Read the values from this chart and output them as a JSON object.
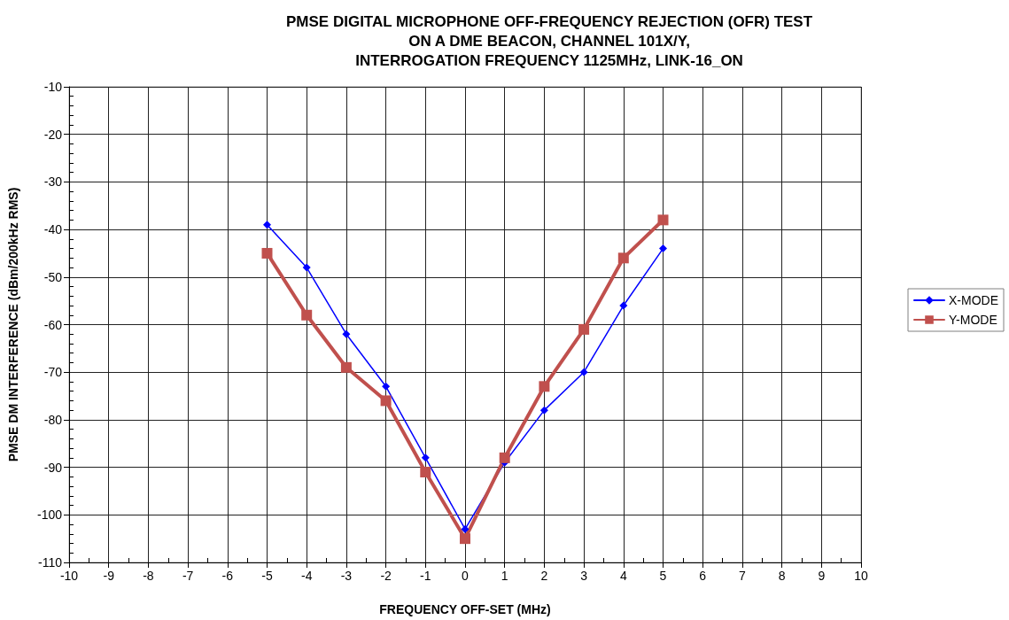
{
  "chart_data": {
    "type": "line",
    "title": "PMSE DIGITAL MICROPHONE OFF-FREQUENCY REJECTION (OFR) TEST\nON A DME BEACON, CHANNEL 101X/Y,\nINTERROGATION FREQUENCY 1125MHz, LINK-16_ON",
    "xlabel": "FREQUENCY OFF-SET (MHz)",
    "ylabel": "PMSE DM INTERFERENCE (dBm/200kHz RMS)",
    "x": [
      -5,
      -4,
      -3,
      -2,
      -1,
      0,
      1,
      2,
      3,
      4,
      5
    ],
    "series": [
      {
        "name": "X-MODE",
        "color": "#0000ff",
        "marker": "diamond",
        "values": [
          -39,
          -48,
          -62,
          -73,
          -88,
          -103,
          -89,
          -78,
          -70,
          -56,
          -44
        ]
      },
      {
        "name": "Y-MODE",
        "color": "#c0504d",
        "marker": "square",
        "values": [
          -45,
          -58,
          -69,
          -76,
          -91,
          -105,
          -88,
          -73,
          -61,
          -46,
          -38
        ]
      }
    ],
    "xlim": [
      -10,
      10
    ],
    "xticks": [
      -10,
      {
        "value": -9.5,
        "label": null
      },
      -9,
      {
        "value": -8.5,
        "label": null
      },
      -8,
      {
        "value": -7.5,
        "label": null
      },
      -7,
      {
        "value": -6.5,
        "label": null
      },
      -6,
      {
        "value": -5.5,
        "label": null
      },
      -5,
      {
        "value": -4.5,
        "label": null
      },
      -4,
      {
        "value": -3.5,
        "label": null
      },
      -3,
      {
        "value": -2.5,
        "label": null
      },
      -2,
      {
        "value": -1.5,
        "label": null
      },
      -1,
      {
        "value": -0.5,
        "label": null
      },
      0,
      {
        "value": 0.5,
        "label": null
      },
      1,
      {
        "value": 1.5,
        "label": null
      },
      2,
      {
        "value": 2.5,
        "label": null
      },
      3,
      {
        "value": 3.5,
        "label": null
      },
      4,
      {
        "value": 4.5,
        "label": null
      },
      5,
      {
        "value": 5.5,
        "label": null
      },
      6,
      {
        "value": 6.5,
        "label": null
      },
      7,
      {
        "value": 7.5,
        "label": null
      },
      8,
      {
        "value": 8.5,
        "label": null
      },
      9,
      {
        "value": 9.5,
        "label": null
      },
      10
    ],
    "ylim": [
      -110,
      -10
    ],
    "yticks": [
      -110,
      {
        "value": -108,
        "label": null
      },
      {
        "value": -106,
        "label": null
      },
      {
        "value": -104,
        "label": null
      },
      {
        "value": -102,
        "label": null
      },
      -100,
      {
        "value": -98,
        "label": null
      },
      {
        "value": -96,
        "label": null
      },
      {
        "value": -94,
        "label": null
      },
      {
        "value": -92,
        "label": null
      },
      -90,
      {
        "value": -88,
        "label": null
      },
      {
        "value": -86,
        "label": null
      },
      {
        "value": -84,
        "label": null
      },
      {
        "value": -82,
        "label": null
      },
      -80,
      {
        "value": -78,
        "label": null
      },
      {
        "value": -76,
        "label": null
      },
      {
        "value": -74,
        "label": null
      },
      {
        "value": -72,
        "label": null
      },
      -70,
      {
        "value": -68,
        "label": null
      },
      {
        "value": -66,
        "label": null
      },
      {
        "value": -64,
        "label": null
      },
      {
        "value": -62,
        "label": null
      },
      -60,
      {
        "value": -58,
        "label": null
      },
      {
        "value": -56,
        "label": null
      },
      {
        "value": -54,
        "label": null
      },
      {
        "value": -52,
        "label": null
      },
      -50,
      {
        "value": -48,
        "label": null
      },
      {
        "value": -46,
        "label": null
      },
      {
        "value": -44,
        "label": null
      },
      {
        "value": -42,
        "label": null
      },
      -40,
      {
        "value": -38,
        "label": null
      },
      {
        "value": -36,
        "label": null
      },
      {
        "value": -34,
        "label": null
      },
      {
        "value": -32,
        "label": null
      },
      -30,
      {
        "value": -28,
        "label": null
      },
      {
        "value": -26,
        "label": null
      },
      {
        "value": -24,
        "label": null
      },
      {
        "value": -22,
        "label": null
      },
      -20,
      {
        "value": -18,
        "label": null
      },
      {
        "value": -16,
        "label": null
      },
      {
        "value": -14,
        "label": null
      },
      {
        "value": -12,
        "label": null
      },
      -10
    ],
    "grid": true,
    "legend": "right",
    "line_style": "solid"
  }
}
